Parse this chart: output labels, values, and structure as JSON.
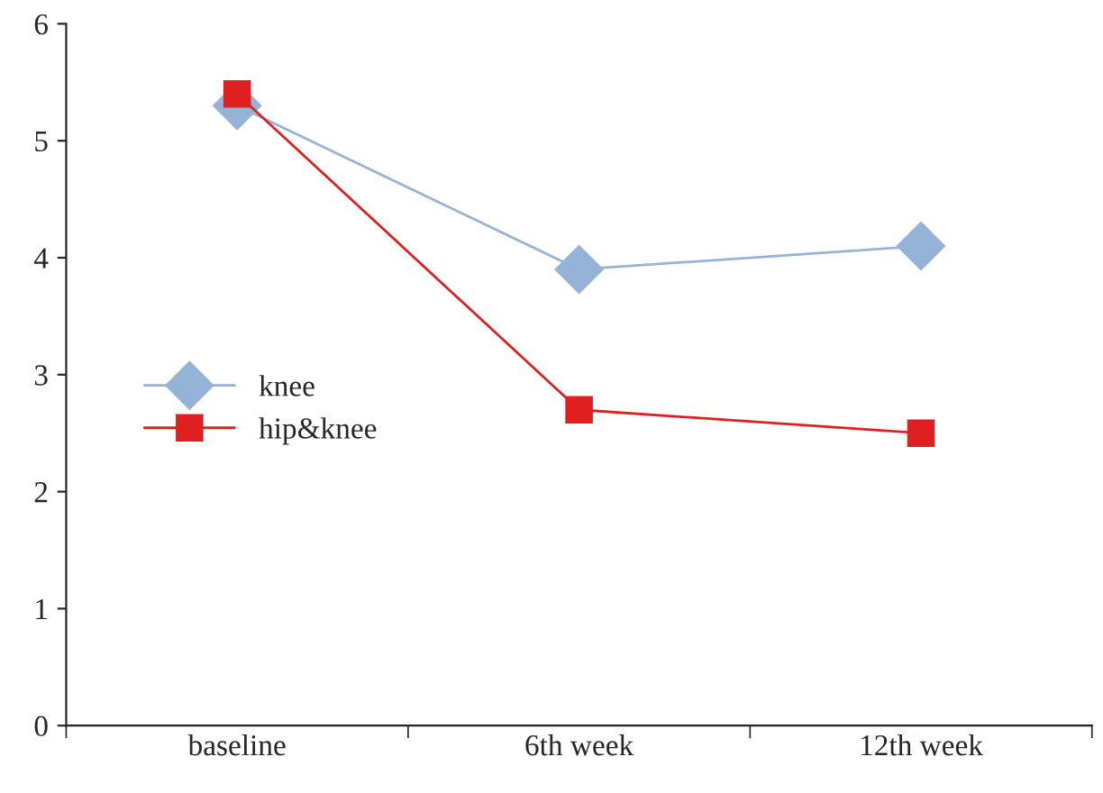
{
  "chart_data": {
    "type": "line",
    "categories": [
      "baseline",
      "6th week",
      "12th week"
    ],
    "series": [
      {
        "name": "knee",
        "color": "#95b3d7",
        "marker": "diamond",
        "values": [
          5.3,
          3.9,
          4.1
        ]
      },
      {
        "name": "hip&knee",
        "color": "#e02020",
        "marker": "square",
        "values": [
          5.4,
          2.7,
          2.5
        ]
      }
    ],
    "ylim": [
      0,
      6
    ],
    "yticks": [
      0,
      1,
      2,
      3,
      4,
      5,
      6
    ],
    "grid": false,
    "legend": "left",
    "line_style": "solid"
  }
}
